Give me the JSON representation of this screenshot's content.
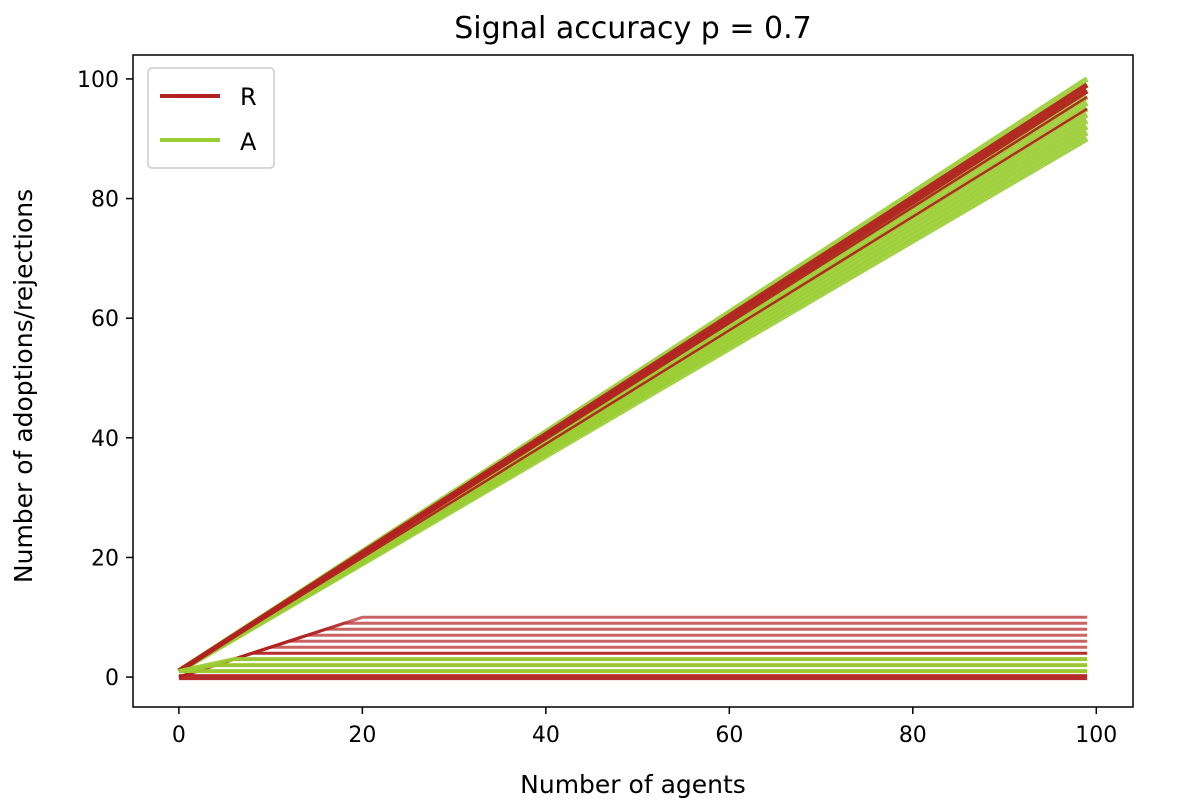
{
  "chart_data": {
    "type": "line",
    "title": "Signal accuracy p =  0.7",
    "xlabel": "Number of agents",
    "ylabel": "Number of adoptions/rejections",
    "xlim": [
      -5,
      104
    ],
    "ylim": [
      -5,
      104
    ],
    "xticks": [
      0,
      20,
      40,
      60,
      80,
      100
    ],
    "yticks": [
      0,
      20,
      40,
      60,
      80,
      100
    ],
    "x_points": 100,
    "legend": {
      "location": "upper left",
      "entries": [
        "R",
        "A"
      ]
    },
    "series": [
      {
        "name": "R",
        "color": "#b22222",
        "description": "rejection counts per run",
        "final_values_top": [
          99,
          98,
          97,
          95
        ],
        "final_values_flat": [
          0,
          1,
          2,
          3,
          4,
          5,
          6,
          7,
          8,
          9,
          10
        ],
        "rise_ends_at_x": [
          2,
          4,
          6,
          8,
          10,
          12,
          14,
          16,
          18,
          20
        ]
      },
      {
        "name": "A",
        "color": "#9acd32",
        "description": "adoption counts per run",
        "final_values_top": [
          100,
          99,
          98,
          97,
          96,
          95,
          94,
          93,
          92,
          91,
          90
        ],
        "final_values_flat": [
          1,
          2,
          3
        ],
        "rise_ends_at_x": [
          2,
          4,
          6
        ]
      }
    ]
  }
}
